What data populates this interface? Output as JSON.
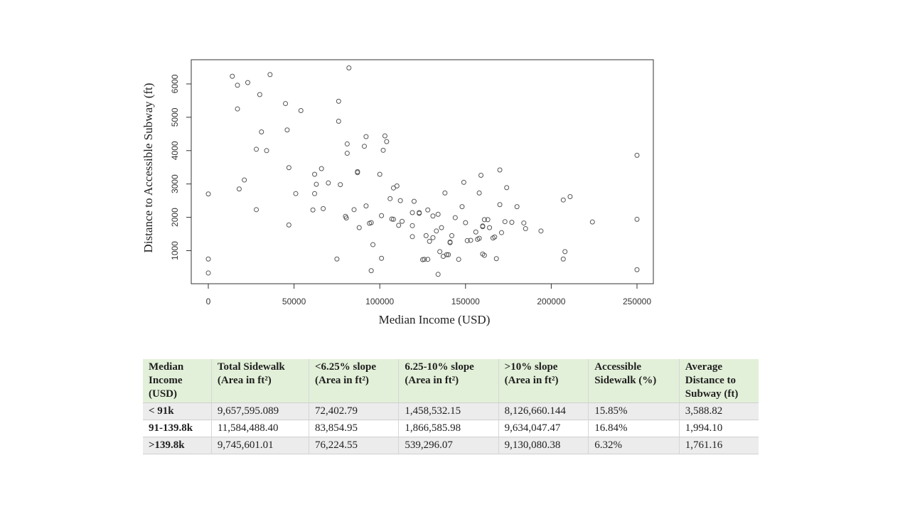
{
  "chart_data": {
    "type": "scatter",
    "title": "",
    "xlabel": "Median Income (USD)",
    "ylabel": "Distance to Accessible Subway (ft)",
    "xlim": [
      -5000,
      255000
    ],
    "ylim": [
      0,
      6600
    ],
    "x_ticks": [
      0,
      50000,
      100000,
      150000,
      200000,
      250000
    ],
    "y_ticks": [
      1000,
      2000,
      3000,
      4000,
      5000,
      6000
    ],
    "grid": false,
    "marker": "open-circle",
    "points": [
      {
        "x": 0,
        "y": 2700
      },
      {
        "x": 0,
        "y": 750
      },
      {
        "x": 0,
        "y": 330
      },
      {
        "x": 14000,
        "y": 6230
      },
      {
        "x": 17000,
        "y": 5960
      },
      {
        "x": 17000,
        "y": 5250
      },
      {
        "x": 18000,
        "y": 2850
      },
      {
        "x": 21000,
        "y": 3120
      },
      {
        "x": 23000,
        "y": 6040
      },
      {
        "x": 28000,
        "y": 4040
      },
      {
        "x": 28000,
        "y": 2230
      },
      {
        "x": 30000,
        "y": 5680
      },
      {
        "x": 31000,
        "y": 4560
      },
      {
        "x": 34000,
        "y": 4000
      },
      {
        "x": 36000,
        "y": 6280
      },
      {
        "x": 45000,
        "y": 5410
      },
      {
        "x": 46000,
        "y": 4620
      },
      {
        "x": 47000,
        "y": 3490
      },
      {
        "x": 47000,
        "y": 1770
      },
      {
        "x": 51000,
        "y": 2710
      },
      {
        "x": 54000,
        "y": 5200
      },
      {
        "x": 61000,
        "y": 2220
      },
      {
        "x": 62000,
        "y": 3290
      },
      {
        "x": 62000,
        "y": 2710
      },
      {
        "x": 63000,
        "y": 2990
      },
      {
        "x": 66000,
        "y": 3460
      },
      {
        "x": 67000,
        "y": 2260
      },
      {
        "x": 70000,
        "y": 3030
      },
      {
        "x": 75000,
        "y": 750
      },
      {
        "x": 76000,
        "y": 5480
      },
      {
        "x": 76000,
        "y": 4880
      },
      {
        "x": 77000,
        "y": 2980
      },
      {
        "x": 80000,
        "y": 2030
      },
      {
        "x": 80500,
        "y": 1980
      },
      {
        "x": 81000,
        "y": 4200
      },
      {
        "x": 81000,
        "y": 3920
      },
      {
        "x": 82000,
        "y": 6480
      },
      {
        "x": 85000,
        "y": 2230
      },
      {
        "x": 87000,
        "y": 3370
      },
      {
        "x": 87000,
        "y": 3340
      },
      {
        "x": 88000,
        "y": 1690
      },
      {
        "x": 91000,
        "y": 4130
      },
      {
        "x": 92000,
        "y": 4420
      },
      {
        "x": 92000,
        "y": 2340
      },
      {
        "x": 94000,
        "y": 1820
      },
      {
        "x": 95000,
        "y": 1840
      },
      {
        "x": 95000,
        "y": 400
      },
      {
        "x": 96000,
        "y": 1180
      },
      {
        "x": 100000,
        "y": 3290
      },
      {
        "x": 101000,
        "y": 770
      },
      {
        "x": 101000,
        "y": 2050
      },
      {
        "x": 102000,
        "y": 4010
      },
      {
        "x": 103000,
        "y": 4440
      },
      {
        "x": 104000,
        "y": 4270
      },
      {
        "x": 106000,
        "y": 2560
      },
      {
        "x": 107000,
        "y": 1950
      },
      {
        "x": 108000,
        "y": 1940
      },
      {
        "x": 108000,
        "y": 2880
      },
      {
        "x": 110000,
        "y": 2940
      },
      {
        "x": 111000,
        "y": 1760
      },
      {
        "x": 112000,
        "y": 2500
      },
      {
        "x": 113000,
        "y": 1880
      },
      {
        "x": 119000,
        "y": 2140
      },
      {
        "x": 119000,
        "y": 1750
      },
      {
        "x": 119000,
        "y": 1420
      },
      {
        "x": 120000,
        "y": 2480
      },
      {
        "x": 123000,
        "y": 2120
      },
      {
        "x": 123000,
        "y": 2140
      },
      {
        "x": 125000,
        "y": 730
      },
      {
        "x": 126000,
        "y": 740
      },
      {
        "x": 127000,
        "y": 1450
      },
      {
        "x": 128000,
        "y": 2220
      },
      {
        "x": 128000,
        "y": 740
      },
      {
        "x": 129000,
        "y": 1280
      },
      {
        "x": 131000,
        "y": 1390
      },
      {
        "x": 131000,
        "y": 2040
      },
      {
        "x": 133000,
        "y": 1590
      },
      {
        "x": 134000,
        "y": 2090
      },
      {
        "x": 134000,
        "y": 290
      },
      {
        "x": 135000,
        "y": 970
      },
      {
        "x": 136000,
        "y": 1690
      },
      {
        "x": 137000,
        "y": 830
      },
      {
        "x": 138000,
        "y": 2730
      },
      {
        "x": 139000,
        "y": 880
      },
      {
        "x": 140000,
        "y": 880
      },
      {
        "x": 141000,
        "y": 1260
      },
      {
        "x": 141000,
        "y": 1240
      },
      {
        "x": 142000,
        "y": 1450
      },
      {
        "x": 144000,
        "y": 1990
      },
      {
        "x": 146000,
        "y": 740
      },
      {
        "x": 148000,
        "y": 2320
      },
      {
        "x": 149000,
        "y": 3050
      },
      {
        "x": 150000,
        "y": 1840
      },
      {
        "x": 151000,
        "y": 1300
      },
      {
        "x": 153000,
        "y": 1310
      },
      {
        "x": 156000,
        "y": 1560
      },
      {
        "x": 157000,
        "y": 1340
      },
      {
        "x": 158000,
        "y": 2730
      },
      {
        "x": 158000,
        "y": 1370
      },
      {
        "x": 159000,
        "y": 3260
      },
      {
        "x": 160000,
        "y": 1740
      },
      {
        "x": 160000,
        "y": 1720
      },
      {
        "x": 160000,
        "y": 900
      },
      {
        "x": 161000,
        "y": 860
      },
      {
        "x": 161000,
        "y": 1930
      },
      {
        "x": 163000,
        "y": 1930
      },
      {
        "x": 164000,
        "y": 1690
      },
      {
        "x": 166000,
        "y": 1380
      },
      {
        "x": 167000,
        "y": 1410
      },
      {
        "x": 168000,
        "y": 760
      },
      {
        "x": 170000,
        "y": 3420
      },
      {
        "x": 170000,
        "y": 2380
      },
      {
        "x": 171000,
        "y": 1540
      },
      {
        "x": 173000,
        "y": 1870
      },
      {
        "x": 174000,
        "y": 2890
      },
      {
        "x": 177000,
        "y": 1850
      },
      {
        "x": 180000,
        "y": 2320
      },
      {
        "x": 184000,
        "y": 1830
      },
      {
        "x": 185000,
        "y": 1660
      },
      {
        "x": 194000,
        "y": 1590
      },
      {
        "x": 207000,
        "y": 750
      },
      {
        "x": 207000,
        "y": 2520
      },
      {
        "x": 208000,
        "y": 970
      },
      {
        "x": 211000,
        "y": 2620
      },
      {
        "x": 224000,
        "y": 1860
      },
      {
        "x": 250000,
        "y": 3860
      },
      {
        "x": 250000,
        "y": 1940
      },
      {
        "x": 250000,
        "y": 430
      }
    ]
  },
  "table": {
    "headers": [
      [
        "Median",
        "Income",
        "(USD)"
      ],
      [
        "Total Sidewalk",
        "(Area in ft²)"
      ],
      [
        "<6.25% slope",
        "(Area in ft²)"
      ],
      [
        "6.25-10% slope",
        "(Area in ft²)"
      ],
      [
        ">10% slope",
        "(Area in ft²)"
      ],
      [
        "Accessible",
        "Sidewalk (%)"
      ],
      [
        "Average",
        "Distance to",
        "Subway (ft)"
      ]
    ],
    "rows": [
      [
        "< 91k",
        "9,657,595.089",
        "72,402.79",
        "1,458,532.15",
        "8,126,660.144",
        "15.85%",
        "3,588.82"
      ],
      [
        "91-139.8k",
        "11,584,488.40",
        "83,854.95",
        "1,866,585.98",
        "9,634,047.47",
        "16.84%",
        "1,994.10"
      ],
      [
        ">139.8k",
        "9,745,601.01",
        "76,224.55",
        "539,296.07",
        "9,130,080.38",
        "6.32%",
        "1,761.16"
      ]
    ]
  }
}
